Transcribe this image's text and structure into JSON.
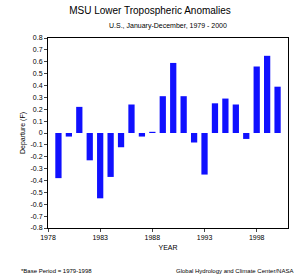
{
  "chart_data": {
    "type": "bar",
    "title": "MSU Lower Tropospheric Anomalies",
    "subtitle": "U.S., January-December, 1979 - 2000",
    "x_label": "YEAR",
    "y_label": "Departure (F)",
    "x": [
      1979,
      1980,
      1981,
      1982,
      1983,
      1984,
      1985,
      1986,
      1987,
      1988,
      1989,
      1990,
      1991,
      1992,
      1993,
      1994,
      1995,
      1996,
      1997,
      1998,
      1999,
      2000
    ],
    "values": [
      -0.38,
      -0.03,
      0.22,
      -0.23,
      -0.55,
      -0.37,
      -0.12,
      0.24,
      -0.03,
      0.01,
      0.31,
      0.59,
      0.31,
      -0.08,
      -0.35,
      0.25,
      0.29,
      0.24,
      -0.05,
      0.56,
      0.65,
      0.39
    ],
    "color": "#1010ff",
    "xlim": [
      1978,
      2001
    ],
    "xticks": [
      1978,
      1983,
      1988,
      1993,
      1998
    ],
    "ylim": [
      -0.8,
      0.8
    ],
    "yticks": [
      -0.8,
      -0.7,
      -0.6,
      -0.5,
      -0.4,
      -0.3,
      -0.2,
      -0.1,
      0,
      0.1,
      0.2,
      0.3,
      0.4,
      0.5,
      0.6,
      0.7,
      0.8
    ],
    "grid": false,
    "annotations": [
      "*Base Period = 1979-1998",
      "Global Hydrology and Climate Center/NASA"
    ]
  }
}
